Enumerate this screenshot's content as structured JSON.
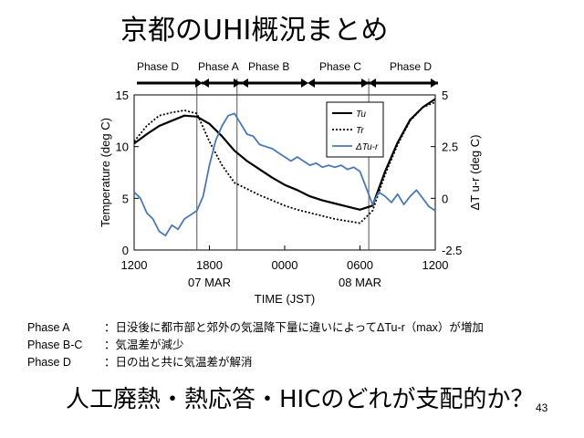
{
  "slide": {
    "title": "京都のUHI概況まとめ",
    "page_number": "43"
  },
  "phases": [
    "Phase D",
    "Phase A",
    "Phase B",
    "Phase  C",
    "Phase D"
  ],
  "descriptions": [
    {
      "key": "Phase A",
      "text": "：日没後に都市部と郊外の気温降下量に違いによってΔTu-r（max）が増加"
    },
    {
      "key": "Phase B-C",
      "text": "：気温差が減少"
    },
    {
      "key": "Phase D",
      "text": "：日の出と共に気温差が解消"
    }
  ],
  "question": "人工廃熱・熱応答・HICのどれが支配的か？",
  "chart_data": {
    "type": "line",
    "xlabel": "TIME (JST)",
    "ylabel": "Temperature (deg C)",
    "ylabel_right": "ΔT u-r (deg C)",
    "ylim": [
      0,
      15
    ],
    "ylim_right": [
      -2.5,
      5
    ],
    "xlim": [
      0,
      24
    ],
    "x_ticks": [
      {
        "x": 0,
        "label": "1200"
      },
      {
        "x": 6,
        "label": "1800"
      },
      {
        "x": 12,
        "label": "0000"
      },
      {
        "x": 18,
        "label": "0600"
      },
      {
        "x": 24,
        "label": "1200"
      }
    ],
    "x_dates": [
      {
        "x": 6,
        "label": "07 MAR"
      },
      {
        "x": 18,
        "label": "08 MAR"
      }
    ],
    "y_ticks": [
      0,
      5,
      10,
      15
    ],
    "y_ticks_right": [
      {
        "v": -2.5,
        "label": "-2.5"
      },
      {
        "v": 0,
        "label": "0"
      },
      {
        "v": 2.5,
        "label": "2.5"
      },
      {
        "v": 5,
        "label": "5"
      }
    ],
    "phase_lines_x": [
      5,
      8.2,
      18.7
    ],
    "legend": {
      "position": "top-right",
      "entries": [
        {
          "name": "Tu",
          "style": "solid"
        },
        {
          "name": "Tr",
          "style": "dotted"
        },
        {
          "name": "ΔTu-r",
          "style": "light-blue"
        }
      ]
    },
    "colors": {
      "Tu": "#000000",
      "Tr": "#000000",
      "dT": "#4a78b5"
    },
    "series": [
      {
        "name": "Tu",
        "axis": "left",
        "style": "solid",
        "x": [
          0,
          1,
          2,
          3,
          4,
          5,
          6,
          7,
          8,
          9,
          10,
          11,
          12,
          13,
          14,
          15,
          16,
          17,
          18,
          19,
          20,
          21,
          22,
          23,
          24
        ],
        "y": [
          10.3,
          11.2,
          12.0,
          12.5,
          13.0,
          12.9,
          12.2,
          11.0,
          9.6,
          8.6,
          7.8,
          7.0,
          6.3,
          5.8,
          5.2,
          4.8,
          4.5,
          4.2,
          3.9,
          4.3,
          7.6,
          10.4,
          12.6,
          13.8,
          14.6
        ]
      },
      {
        "name": "Tr",
        "axis": "left",
        "style": "dotted",
        "x": [
          0,
          1,
          2,
          3,
          4,
          5,
          6,
          7,
          8,
          9,
          10,
          11,
          12,
          13,
          14,
          15,
          16,
          17,
          18,
          19,
          20,
          21,
          22,
          23,
          24
        ],
        "y": [
          10.5,
          12.0,
          13.0,
          13.3,
          13.5,
          13.2,
          10.5,
          8.2,
          6.5,
          5.9,
          5.3,
          4.8,
          4.3,
          3.9,
          3.6,
          3.3,
          3.0,
          2.8,
          2.6,
          3.8,
          7.3,
          10.2,
          12.5,
          13.8,
          14.3
        ]
      },
      {
        "name": "ΔTu-r",
        "axis": "right",
        "style": "light-blue",
        "x": [
          0,
          0.5,
          1,
          1.5,
          2,
          2.5,
          3,
          3.5,
          4,
          4.5,
          5,
          5.5,
          6,
          6.5,
          7,
          7.5,
          8,
          8.5,
          9,
          9.5,
          10,
          10.5,
          11,
          11.5,
          12,
          12.5,
          13,
          13.5,
          14,
          14.5,
          15,
          15.5,
          16,
          16.5,
          17,
          17.5,
          18,
          18.5,
          19,
          19.5,
          20,
          20.5,
          21,
          21.5,
          22,
          22.5,
          23,
          23.5,
          24
        ],
        "y": [
          0.3,
          0.0,
          -0.7,
          -1.0,
          -1.6,
          -1.8,
          -1.3,
          -1.5,
          -1.0,
          -0.8,
          -0.6,
          0.1,
          1.6,
          2.8,
          3.5,
          4.0,
          4.1,
          3.6,
          3.1,
          3.0,
          2.6,
          2.5,
          2.4,
          2.2,
          2.0,
          1.8,
          2.0,
          1.8,
          1.6,
          1.7,
          1.5,
          1.6,
          1.5,
          1.6,
          1.4,
          1.5,
          1.3,
          0.5,
          -0.3,
          0.3,
          0.1,
          -0.2,
          0.2,
          -0.3,
          0.1,
          0.4,
          0.0,
          -0.4,
          -0.6
        ]
      }
    ]
  }
}
